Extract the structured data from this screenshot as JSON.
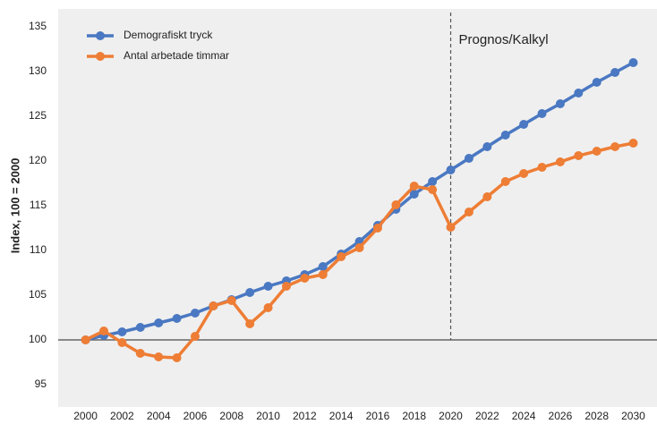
{
  "chart_data": {
    "type": "line",
    "y_label": "Index, 100 = 2000",
    "annotation": "Prognos/Kalkyl",
    "annotation_x": 2020,
    "reference_line": 100,
    "x": [
      2000,
      2001,
      2002,
      2003,
      2004,
      2005,
      2006,
      2007,
      2008,
      2009,
      2010,
      2011,
      2012,
      2013,
      2014,
      2015,
      2016,
      2017,
      2018,
      2019,
      2020,
      2021,
      2022,
      2023,
      2024,
      2025,
      2026,
      2027,
      2028,
      2029,
      2030
    ],
    "series": [
      {
        "name": "Demografiskt tryck",
        "color": "#4a78c2",
        "values": [
          100,
          100.5,
          100.9,
          101.4,
          101.9,
          102.4,
          103.0,
          103.8,
          104.5,
          105.3,
          106.0,
          106.6,
          107.3,
          108.2,
          109.6,
          111.0,
          112.8,
          114.6,
          116.3,
          117.7,
          119.0,
          120.3,
          121.6,
          122.9,
          124.1,
          125.3,
          126.4,
          127.6,
          128.8,
          129.9,
          131.0
        ]
      },
      {
        "name": "Antal arbetade timmar",
        "color": "#ee7d35",
        "values": [
          100,
          101.0,
          99.7,
          98.5,
          98.1,
          98.0,
          100.4,
          103.8,
          104.4,
          101.8,
          103.6,
          106.0,
          106.9,
          107.3,
          109.3,
          110.3,
          112.5,
          115.1,
          117.2,
          116.8,
          112.6,
          114.3,
          116.0,
          117.7,
          118.6,
          119.3,
          119.9,
          120.6,
          121.1,
          121.6,
          122.0
        ]
      }
    ],
    "xlim": [
      1998.5,
      2031.3
    ],
    "ylim": [
      92.5,
      137
    ],
    "xticks": [
      2000,
      2002,
      2004,
      2006,
      2008,
      2010,
      2012,
      2014,
      2016,
      2018,
      2020,
      2022,
      2024,
      2026,
      2028,
      2030
    ],
    "yticks": [
      95,
      100,
      105,
      110,
      115,
      120,
      125,
      130,
      135
    ],
    "grid": false,
    "legend": "top-left"
  }
}
